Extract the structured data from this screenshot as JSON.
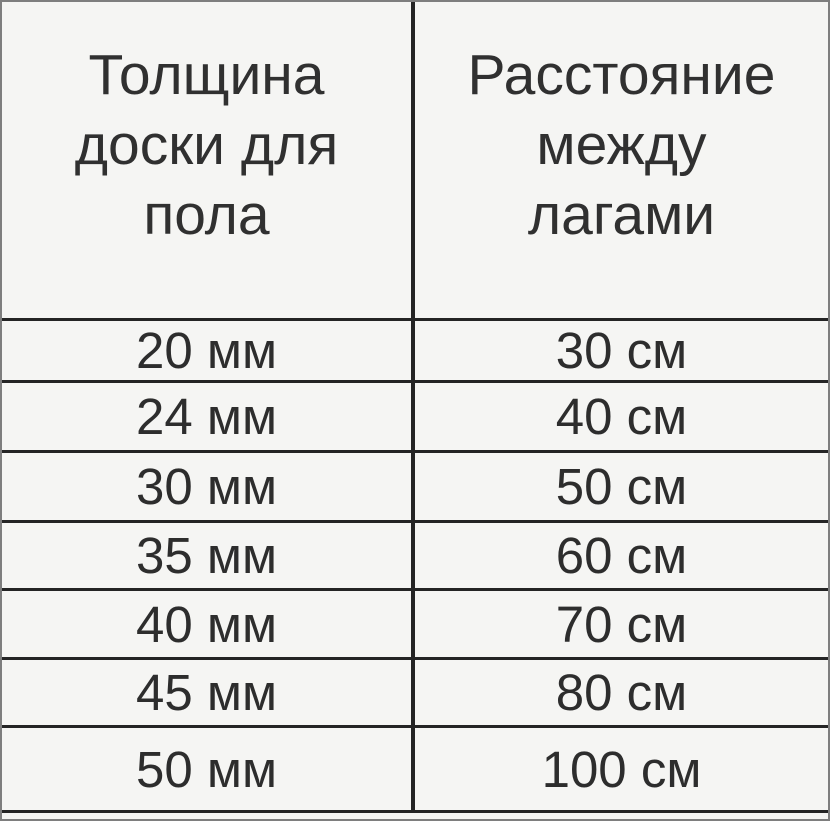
{
  "chart_data": {
    "type": "table",
    "title": "",
    "columns": [
      "Толщина доски для пола",
      "Расстояние между лагами"
    ],
    "rows": [
      [
        "20 мм",
        "30 см"
      ],
      [
        "24 мм",
        "40 см"
      ],
      [
        "30 мм",
        "50 см"
      ],
      [
        "35 мм",
        "60 см"
      ],
      [
        "40 мм",
        "70 см"
      ],
      [
        "45 мм",
        "80 см"
      ],
      [
        "50 мм",
        "100 см"
      ]
    ]
  },
  "colors": {
    "background": "#f5f5f3",
    "grid_line": "#242424",
    "outer_border": "#7e7e7e",
    "text": "#2d2d2d",
    "header_text": "#303030"
  }
}
